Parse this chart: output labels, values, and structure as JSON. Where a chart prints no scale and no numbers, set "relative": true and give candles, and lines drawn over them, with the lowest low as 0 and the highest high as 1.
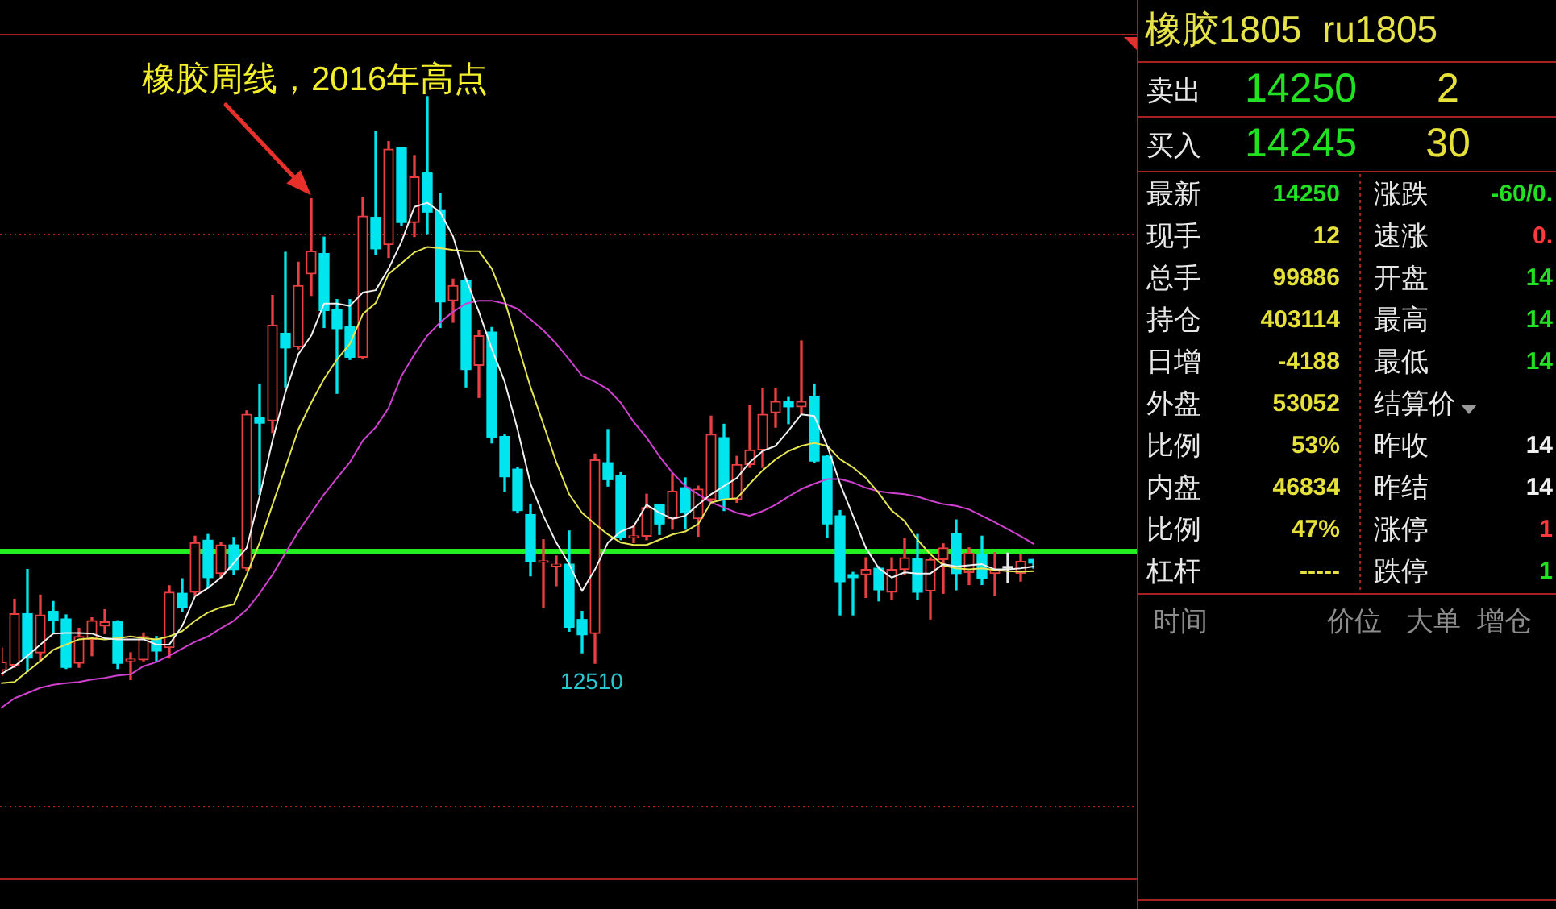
{
  "chart_data": [
    {
      "type": "candlestick",
      "relative": true,
      "categories": [
        null,
        null,
        null,
        null,
        null,
        null,
        null,
        null,
        null,
        null,
        null,
        null,
        null,
        null,
        null,
        null,
        null,
        null,
        null,
        null,
        null,
        null,
        null,
        null,
        null,
        null,
        null,
        null,
        null,
        null,
        null,
        null,
        null,
        null,
        null,
        null,
        null,
        null,
        null,
        null,
        null,
        null,
        null,
        null,
        null,
        null,
        null,
        null,
        null,
        null,
        null,
        null,
        null,
        null,
        null,
        null,
        null,
        null,
        null,
        null,
        null,
        null,
        null,
        null,
        null,
        null,
        null,
        null,
        null,
        null,
        null,
        null,
        null,
        null,
        null,
        null,
        null,
        null,
        null,
        null,
        null
      ],
      "ohlc": [
        [
          0.016,
          0.054,
          0.007,
          0.03
        ],
        [
          0.025,
          0.138,
          0.021,
          0.113
        ],
        [
          0.113,
          0.189,
          0.014,
          0.037
        ],
        [
          0.046,
          0.145,
          0.032,
          0.111
        ],
        [
          0.117,
          0.134,
          0.079,
          0.101
        ],
        [
          0.104,
          0.111,
          0.019,
          0.021
        ],
        [
          0.028,
          0.088,
          0.021,
          0.074
        ],
        [
          0.069,
          0.106,
          0.041,
          0.101
        ],
        [
          0.092,
          0.12,
          0.079,
          0.099
        ],
        [
          0.099,
          0.101,
          0.019,
          0.028
        ],
        [
          0.032,
          0.046,
          0,
          0.035
        ],
        [
          0.034,
          0.08,
          0.032,
          0.074
        ],
        [
          0.069,
          0.074,
          0.032,
          0.049
        ],
        [
          0.055,
          0.161,
          0.037,
          0.15
        ],
        [
          0.148,
          0.173,
          0.117,
          0.123
        ],
        [
          0.15,
          0.246,
          0.145,
          0.235
        ],
        [
          0.239,
          0.249,
          0.157,
          0.175
        ],
        [
          0.182,
          0.235,
          0.175,
          0.231
        ],
        [
          0.231,
          0.244,
          0.18,
          0.189
        ],
        [
          0.191,
          0.461,
          0.187,
          0.455
        ],
        [
          0.449,
          0.507,
          0.318,
          0.44
        ],
        [
          0.444,
          0.659,
          0.424,
          0.608
        ],
        [
          0.594,
          0.733,
          0.502,
          0.569
        ],
        [
          0.571,
          0.716,
          0.567,
          0.676
        ],
        [
          0.696,
          0.825,
          0.659,
          0.735
        ],
        [
          0.731,
          0.759,
          0.604,
          0.633
        ],
        [
          0.635,
          0.652,
          0.491,
          0.602
        ],
        [
          0.605,
          0.652,
          0.549,
          0.553
        ],
        [
          0.553,
          0.827,
          0.55,
          0.795
        ],
        [
          0.793,
          0.94,
          0.729,
          0.739
        ],
        [
          0.746,
          0.923,
          0.724,
          0.91
        ],
        [
          0.912,
          0.912,
          0.779,
          0.784
        ],
        [
          0.784,
          0.899,
          0.76,
          0.862
        ],
        [
          0.869,
          1,
          0.765,
          0.802
        ],
        [
          0.806,
          0.834,
          0.604,
          0.648
        ],
        [
          0.65,
          0.687,
          0.613,
          0.676
        ],
        [
          0.685,
          0.688,
          0.502,
          0.532
        ],
        [
          0.539,
          0.599,
          0.484,
          0.59
        ],
        [
          0.596,
          0.604,
          0.406,
          0.415
        ],
        [
          0.417,
          0.421,
          0.323,
          0.348
        ],
        [
          0.361,
          0.364,
          0.286,
          0.29
        ],
        [
          0.283,
          0.301,
          0.178,
          0.203
        ],
        [
          0.201,
          0.24,
          0.123,
          0.203
        ],
        [
          0.195,
          0.212,
          0.161,
          0.196
        ],
        [
          0.198,
          0.255,
          0.083,
          0.09
        ],
        [
          0.103,
          0.117,
          0.046,
          0.077
        ],
        [
          0.079,
          0.387,
          0.028,
          0.377
        ],
        [
          0.372,
          0.429,
          0.332,
          0.343
        ],
        [
          0.35,
          0.355,
          0.24,
          0.244
        ],
        [
          0.244,
          0.265,
          0.235,
          0.246
        ],
        [
          0.246,
          0.318,
          0.24,
          0.295
        ],
        [
          0.3,
          0.301,
          0.249,
          0.267
        ],
        [
          0.276,
          0.353,
          0.258,
          0.323
        ],
        [
          0.329,
          0.346,
          0.258,
          0.286
        ],
        [
          0.276,
          0.332,
          0.246,
          0.327
        ],
        [
          0.309,
          0.452,
          0.307,
          0.421
        ],
        [
          0.415,
          0.438,
          0.29,
          0.309
        ],
        [
          0.309,
          0.383,
          0.304,
          0.369
        ],
        [
          0.369,
          0.47,
          0.364,
          0.394
        ],
        [
          0.394,
          0.5,
          0.364,
          0.455
        ],
        [
          0.458,
          0.5,
          0.433,
          0.477
        ],
        [
          0.477,
          0.484,
          0.439,
          0.468
        ],
        [
          0.468,
          0.581,
          0.456,
          0.477
        ],
        [
          0.486,
          0.507,
          0.373,
          0.375
        ],
        [
          0.383,
          0.384,
          0.244,
          0.267
        ],
        [
          0.281,
          0.29,
          0.111,
          0.168
        ],
        [
          0.18,
          0.184,
          0.111,
          0.175
        ],
        [
          0.18,
          0.209,
          0.141,
          0.189
        ],
        [
          0.191,
          0.194,
          0.135,
          0.154
        ],
        [
          0.15,
          0.209,
          0.138,
          0.189
        ],
        [
          0.189,
          0.242,
          0.18,
          0.209
        ],
        [
          0.207,
          0.249,
          0.138,
          0.15
        ],
        [
          0.152,
          0.209,
          0.104,
          0.206
        ],
        [
          0.206,
          0.233,
          0.148,
          0.226
        ],
        [
          0.25,
          0.274,
          0.154,
          0.182
        ],
        [
          0.184,
          0.226,
          0.163,
          0.217
        ],
        [
          0.215,
          0.246,
          0.163,
          0.174
        ],
        [
          0.182,
          0.218,
          0.145,
          0.189
        ],
        [
          0.194,
          0.217,
          0.166,
          0.194
        ],
        [
          0.182,
          0.215,
          0.169,
          0.203
        ],
        [
          0.206,
          0.206,
          0.191,
          0.2
        ]
      ],
      "colors": [
        "#e84040",
        "#e84040",
        "#00e5ee",
        "#e84040",
        "#00e5ee",
        "#00e5ee",
        "#e84040",
        "#e84040",
        "#e84040",
        "#00e5ee",
        "#e84040",
        "#e84040",
        "#00e5ee",
        "#e84040",
        "#00e5ee",
        "#e84040",
        "#00e5ee",
        "#e84040",
        "#00e5ee",
        "#e84040",
        "#00e5ee",
        "#e84040",
        "#00e5ee",
        "#e84040",
        "#e84040",
        "#00e5ee",
        "#00e5ee",
        "#00e5ee",
        "#e84040",
        "#00e5ee",
        "#e84040",
        "#00e5ee",
        "#e84040",
        "#00e5ee",
        "#00e5ee",
        "#e84040",
        "#00e5ee",
        "#e84040",
        "#00e5ee",
        "#00e5ee",
        "#00e5ee",
        "#00e5ee",
        "#e84040",
        "#e84040",
        "#00e5ee",
        "#00e5ee",
        "#e84040",
        "#00e5ee",
        "#00e5ee",
        "#e84040",
        "#e84040",
        "#00e5ee",
        "#e84040",
        "#00e5ee",
        "#e84040",
        "#e84040",
        "#00e5ee",
        "#e84040",
        "#e84040",
        "#e84040",
        "#e84040",
        "#00e5ee",
        "#e84040",
        "#00e5ee",
        "#00e5ee",
        "#00e5ee",
        "#00e5ee",
        "#e84040",
        "#00e5ee",
        "#e84040",
        "#e84040",
        "#00e5ee",
        "#e84040",
        "#e84040",
        "#00e5ee",
        "#e84040",
        "#00e5ee",
        "#e84040",
        "#e8e8e8",
        "#e84040",
        "#00e5ee"
      ],
      "series": [
        {
          "type": "line",
          "color": "#f0f0f0",
          "values": [
            0.01,
            0.023,
            0.041,
            0.06,
            0.079,
            0.08,
            0.08,
            0.079,
            0.071,
            0.069,
            0.069,
            0.069,
            0.06,
            0.06,
            0.092,
            0.143,
            0.157,
            0.175,
            0.2,
            0.226,
            0.314,
            0.41,
            0.493,
            0.558,
            0.59,
            0.645,
            0.645,
            0.641,
            0.664,
            0.668,
            0.705,
            0.751,
            0.811,
            0.818,
            0.802,
            0.76,
            0.687,
            0.631,
            0.567,
            0.511,
            0.429,
            0.336,
            0.281,
            0.235,
            0.198,
            0.152,
            0.189,
            0.235,
            0.254,
            0.263,
            0.3,
            0.286,
            0.276,
            0.281,
            0.3,
            0.318,
            0.332,
            0.346,
            0.373,
            0.392,
            0.401,
            0.427,
            0.455,
            0.452,
            0.401,
            0.336,
            0.281,
            0.226,
            0.191,
            0.175,
            0.184,
            0.182,
            0.182,
            0.198,
            0.194,
            0.196,
            0.198,
            0.189,
            0.189,
            0.191,
            0.194
          ]
        },
        {
          "type": "line",
          "color": "#e6e650",
          "values": [
            -0.006,
            -0.004,
            0.014,
            0.032,
            0.051,
            0.06,
            0.069,
            0.071,
            0.069,
            0.071,
            0.074,
            0.071,
            0.069,
            0.074,
            0.083,
            0.101,
            0.115,
            0.124,
            0.129,
            0.18,
            0.235,
            0.3,
            0.364,
            0.429,
            0.475,
            0.516,
            0.549,
            0.576,
            0.627,
            0.646,
            0.696,
            0.714,
            0.733,
            0.742,
            0.74,
            0.737,
            0.735,
            0.735,
            0.705,
            0.65,
            0.576,
            0.502,
            0.438,
            0.373,
            0.318,
            0.286,
            0.267,
            0.249,
            0.235,
            0.231,
            0.231,
            0.24,
            0.249,
            0.254,
            0.267,
            0.304,
            0.309,
            0.311,
            0.336,
            0.359,
            0.378,
            0.392,
            0.401,
            0.406,
            0.401,
            0.378,
            0.364,
            0.346,
            0.32,
            0.29,
            0.272,
            0.24,
            0.215,
            0.196,
            0.191,
            0.189,
            0.191,
            0.188,
            0.186,
            0.185,
            0.186
          ]
        },
        {
          "type": "line",
          "color": "#d040d0",
          "values": [
            -0.048,
            -0.032,
            -0.023,
            -0.014,
            -0.009,
            -0.006,
            -0.004,
            0,
            0.003,
            0.007,
            0.009,
            0.023,
            0.03,
            0.041,
            0.053,
            0.065,
            0.074,
            0.088,
            0.101,
            0.12,
            0.148,
            0.18,
            0.217,
            0.254,
            0.286,
            0.318,
            0.346,
            0.373,
            0.41,
            0.433,
            0.466,
            0.521,
            0.558,
            0.59,
            0.613,
            0.631,
            0.645,
            0.65,
            0.65,
            0.645,
            0.636,
            0.618,
            0.599,
            0.576,
            0.549,
            0.521,
            0.511,
            0.498,
            0.475,
            0.442,
            0.415,
            0.383,
            0.355,
            0.332,
            0.318,
            0.304,
            0.295,
            0.286,
            0.281,
            0.289,
            0.3,
            0.314,
            0.327,
            0.336,
            0.344,
            0.344,
            0.338,
            0.329,
            0.323,
            0.32,
            0.318,
            0.314,
            0.307,
            0.301,
            0.298,
            0.292,
            0.281,
            0.27,
            0.258,
            0.246,
            0.233
          ]
        }
      ],
      "ref_lines": [
        {
          "axis": "y",
          "value": 0.765,
          "color": "#a82020",
          "line_style": "dotted"
        },
        {
          "axis": "y",
          "value": 0.22,
          "color": "#22f022",
          "line_style": "solid"
        },
        {
          "axis": "y",
          "value": -0.216,
          "color": "#a82020",
          "line_style": "dotted"
        }
      ],
      "annotations": [
        {
          "text": "橡胶周线，2016年高点",
          "y": 0.825
        },
        {
          "text": "12510",
          "y": 0.028
        }
      ]
    },
    {
      "type": "other",
      "title": "橡胶1805  ru1805",
      "annotations": [
        "卖出",
        "14250",
        "2",
        "买入",
        "14245",
        "30",
        "最新",
        "14250",
        "涨跌",
        "-60/0.",
        "现手",
        "12",
        "速涨",
        "0.",
        "总手",
        "99886",
        "开盘",
        "14",
        "持仓",
        "403114",
        "最高",
        "14",
        "日增",
        "-4188",
        "最低",
        "14",
        "外盘",
        "53052",
        "结算价",
        "比例",
        "53%",
        "昨收",
        "14",
        "内盘",
        "46834",
        "昨结",
        "14",
        "比例",
        "47%",
        "涨停",
        "1",
        "杠杆",
        "-----",
        "跌停",
        "1",
        "时间",
        "价位",
        "大单",
        "增仓"
      ]
    }
  ]
}
